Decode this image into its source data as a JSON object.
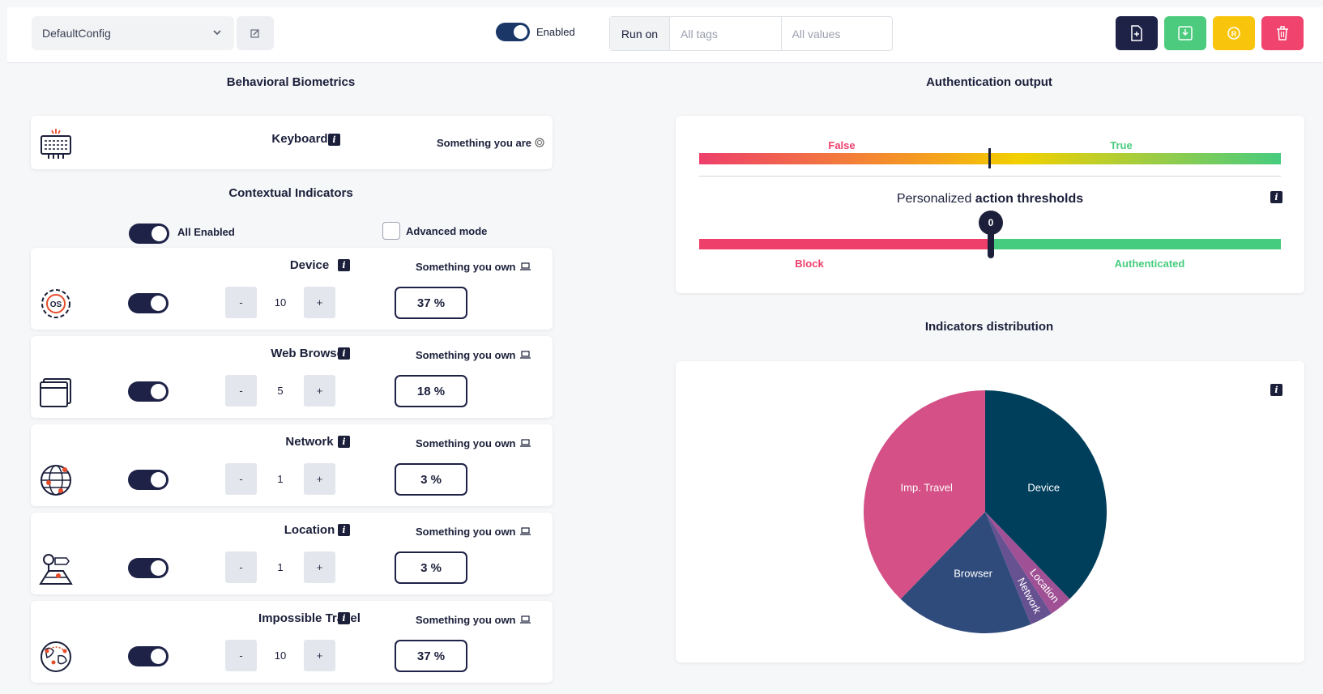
{
  "toolbar": {
    "config_name": "DefaultConfig",
    "enabled_label": "Enabled",
    "run_on_label": "Run on",
    "tags_placeholder": "All tags",
    "values_placeholder": "All values",
    "buttons": {
      "new": {
        "icon": "file-plus-icon",
        "color": "#1e2247"
      },
      "download": {
        "icon": "download-icon",
        "color": "#4ccb7e"
      },
      "reset": {
        "icon": "reset-icon",
        "color": "#f9c40c"
      },
      "delete": {
        "icon": "trash-icon",
        "color": "#f0436d"
      }
    }
  },
  "left": {
    "biometrics_title": "Behavioral Biometrics",
    "keyboard": {
      "name": "Keyboard",
      "category": "Something you are"
    },
    "contextual_title": "Contextual Indicators",
    "all_enabled_label": "All Enabled",
    "advanced_mode_label": "Advanced mode",
    "indicators": [
      {
        "name": "Device",
        "category": "Something you own",
        "weight": "10",
        "percent": "37 %",
        "minus": "-",
        "plus": "+",
        "icon": "os-gear-icon"
      },
      {
        "name": "Web Browser",
        "category": "Something you own",
        "weight": "5",
        "percent": "18 %",
        "minus": "-",
        "plus": "+",
        "icon": "browser-window-icon"
      },
      {
        "name": "Network",
        "category": "Something you own",
        "weight": "1",
        "percent": "3 %",
        "minus": "-",
        "plus": "+",
        "icon": "globe-network-icon"
      },
      {
        "name": "Location",
        "category": "Something you own",
        "weight": "1",
        "percent": "3 %",
        "minus": "-",
        "plus": "+",
        "icon": "location-map-icon"
      },
      {
        "name": "Impossible Travel",
        "category": "Something you own",
        "weight": "10",
        "percent": "37 %",
        "minus": "-",
        "plus": "+",
        "icon": "globe-travel-icon"
      }
    ]
  },
  "right": {
    "auth_title": "Authentication output",
    "false_label": "False",
    "true_label": "True",
    "thresholds_prefix": "Personalized ",
    "thresholds_bold": "action thresholds",
    "threshold_value": "0",
    "block_label": "Block",
    "authenticated_label": "Authenticated",
    "distribution_title": "Indicators distribution",
    "colors": {
      "false": "#ee3f6b",
      "true": "#46cc7e",
      "block": "#ee3f6b",
      "authenticated": "#46cc7e"
    }
  },
  "chart_data": {
    "type": "pie",
    "slices": [
      {
        "label": "Device",
        "value": 37,
        "color": "#003f5c"
      },
      {
        "label": "Location",
        "value": 3,
        "color": "#a05195"
      },
      {
        "label": "Network",
        "value": 3,
        "color": "#665191"
      },
      {
        "label": "Browser",
        "value": 18,
        "color": "#2f4b7c"
      },
      {
        "label": "Imp. Travel",
        "value": 37,
        "color": "#d45087"
      }
    ]
  }
}
